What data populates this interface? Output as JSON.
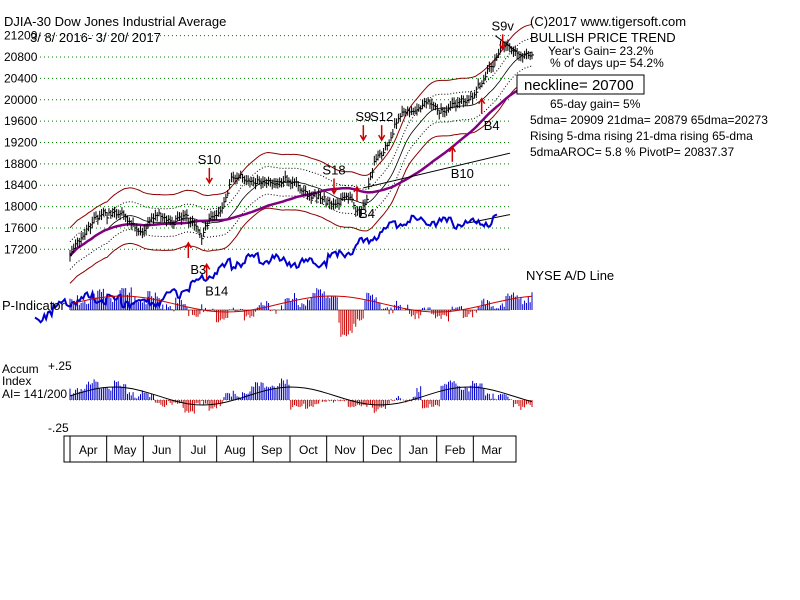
{
  "header": {
    "ticker_title": "DJIA-30  Dow Jones Industrial Average",
    "date_range": "3/ 8/ 2016- 3/ 20/ 2017",
    "copyright": "(C)2017 www.tigersoft.com",
    "trend": "BULLISH PRICE TREND",
    "years_gain": "Year's Gain= 23.2%",
    "days_up": "% of days up= 54.2%",
    "neckline": "neckline= 20700",
    "gain_65": "65-day gain= 5%",
    "dma_line": "5dma= 20909 21dma= 20879 65dma=20273",
    "rising_line": "Rising 5-dma rising 21-dma rising 65-dma",
    "aroc_line": "5dmaAROC= 5.8 %  PivotP= 20837.37"
  },
  "panels": {
    "ad_line": "NYSE A/D Line",
    "p_indicator": "P-Indicator",
    "accum_l1": "Accum",
    "accum_l2": "Index",
    "accum_l3": "AI= 141/200",
    "accum_top": "+.25",
    "accum_bottom": "-.25"
  },
  "chart_data": {
    "type": "line",
    "title": "DJIA-30  Dow Jones Industrial Average",
    "y_ticks": [
      21200,
      20800,
      20400,
      20000,
      19600,
      19200,
      18800,
      18400,
      18000,
      17600,
      17200
    ],
    "y_range": [
      16850,
      21400
    ],
    "months": [
      "Apr",
      "May",
      "Jun",
      "Jul",
      "Aug",
      "Sep",
      "Oct",
      "Nov",
      "Dec",
      "Jan",
      "Feb",
      "Mar"
    ],
    "grid": true,
    "series": [
      {
        "name": "DJIA",
        "points": [
          {
            "m": 0.0,
            "v": 17000
          },
          {
            "m": 0.3,
            "v": 17500
          },
          {
            "m": 0.7,
            "v": 17750
          },
          {
            "m": 1.2,
            "v": 17950
          },
          {
            "m": 1.6,
            "v": 17700
          },
          {
            "m": 2.0,
            "v": 17550
          },
          {
            "m": 2.4,
            "v": 17850
          },
          {
            "m": 2.9,
            "v": 17700
          },
          {
            "m": 3.3,
            "v": 17800
          },
          {
            "m": 3.6,
            "v": 17450
          },
          {
            "m": 3.8,
            "v": 17700
          },
          {
            "m": 4.1,
            "v": 17950
          },
          {
            "m": 4.4,
            "v": 18500
          },
          {
            "m": 4.8,
            "v": 18550
          },
          {
            "m": 5.3,
            "v": 18400
          },
          {
            "m": 5.8,
            "v": 18500
          },
          {
            "m": 6.3,
            "v": 18350
          },
          {
            "m": 6.7,
            "v": 18150
          },
          {
            "m": 7.2,
            "v": 18100
          },
          {
            "m": 7.6,
            "v": 18150
          },
          {
            "m": 7.9,
            "v": 17900
          },
          {
            "m": 8.1,
            "v": 18200
          },
          {
            "m": 8.3,
            "v": 18800
          },
          {
            "m": 8.7,
            "v": 19250
          },
          {
            "m": 9.0,
            "v": 19650
          },
          {
            "m": 9.4,
            "v": 19850
          },
          {
            "m": 9.8,
            "v": 19900
          },
          {
            "m": 10.2,
            "v": 19800
          },
          {
            "m": 10.6,
            "v": 19900
          },
          {
            "m": 10.9,
            "v": 20050
          },
          {
            "m": 11.2,
            "v": 20250
          },
          {
            "m": 11.5,
            "v": 20650
          },
          {
            "m": 11.8,
            "v": 21100
          },
          {
            "m": 12.1,
            "v": 20850
          },
          {
            "m": 12.4,
            "v": 20900
          },
          {
            "m": 12.6,
            "v": 20850
          }
        ]
      }
    ],
    "signals": [
      {
        "label": "S9v",
        "m": 11.8,
        "v": 21300
      },
      {
        "label": "S10",
        "m": 3.8,
        "v": 18800
      },
      {
        "label": "S18",
        "m": 7.2,
        "v": 18600
      },
      {
        "label": "S9",
        "m": 8.0,
        "v": 19600
      },
      {
        "label": "S12",
        "m": 8.5,
        "v": 19600
      },
      {
        "label": "B4",
        "m": 8.1,
        "v": 18050
      },
      {
        "label": "B4",
        "m": 11.5,
        "v": 19700
      },
      {
        "label": "B10",
        "m": 10.7,
        "v": 18800
      },
      {
        "label": "B3",
        "m": 3.5,
        "v": 17000
      },
      {
        "label": "B14",
        "m": 4.0,
        "v": 16600
      }
    ]
  },
  "colors": {
    "price": "#000000",
    "band": "#8b0000",
    "ma65": "#800080",
    "ad_line": "#0000cc",
    "indicator_pos": "#0000cc",
    "indicator_neg": "#cc0000",
    "signal_arrow": "#cc0000",
    "grid": "#008000"
  }
}
